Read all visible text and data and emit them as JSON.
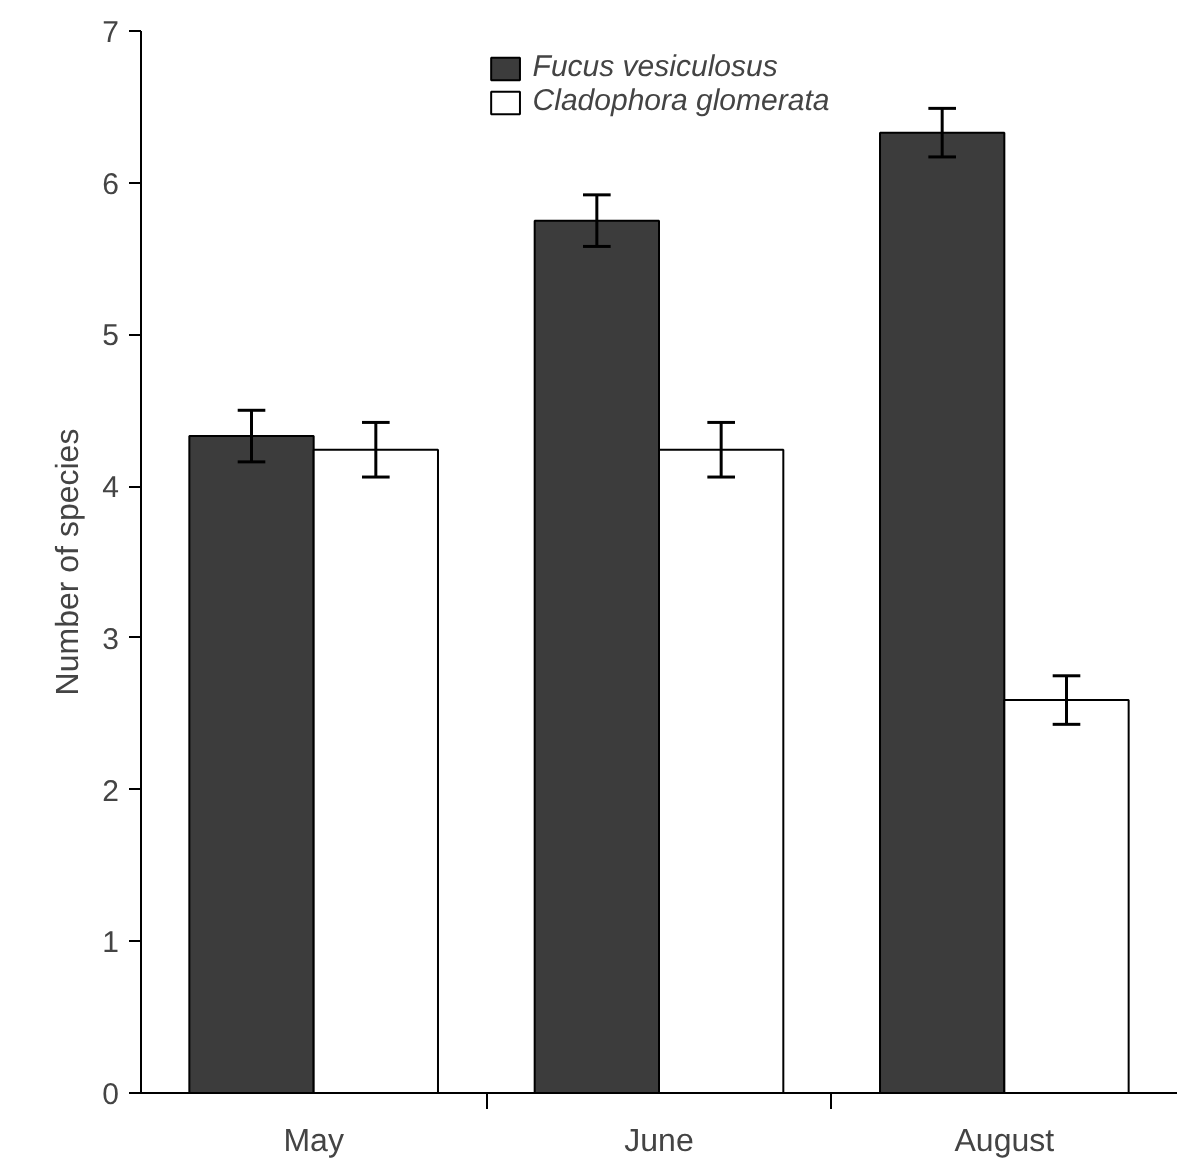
{
  "chart_data": {
    "type": "bar",
    "ylabel": "Number of species",
    "categories": [
      "May",
      "June",
      "August"
    ],
    "series": [
      {
        "name": "Fucus vesiculosus",
        "color": "#3c3c3c",
        "values": [
          4.33,
          5.75,
          6.33
        ],
        "errors": [
          0.17,
          0.17,
          0.16
        ]
      },
      {
        "name": "Cladophora glomerata",
        "color": "#ffffff",
        "values": [
          4.24,
          4.24,
          2.59
        ],
        "errors": [
          0.18,
          0.18,
          0.16
        ]
      }
    ],
    "ylim": [
      0,
      7
    ],
    "yticks": [
      0,
      1,
      2,
      3,
      4,
      5,
      6,
      7
    ],
    "grid": false,
    "legend": "top"
  }
}
